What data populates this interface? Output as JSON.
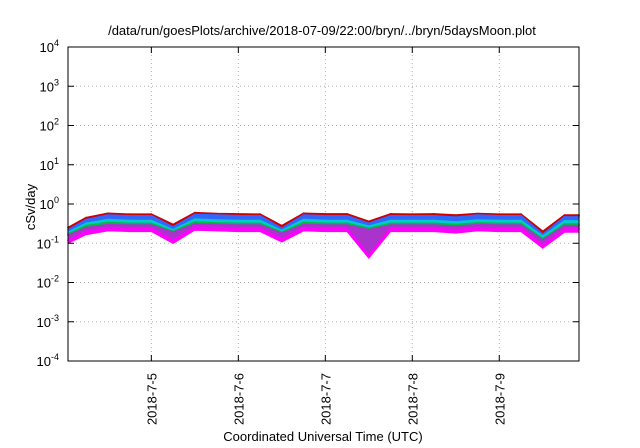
{
  "chart_data": {
    "type": "area",
    "title": "/data/run/goesPlots/archive/2018-07-09/22:00/bryn/../bryn/5daysMoon.plot",
    "xlabel": "Coordinated Universal Time (UTC)",
    "ylabel": "cSv/day",
    "yscale": "log",
    "ylim": [
      0.0001,
      10000
    ],
    "y_ticks": [
      {
        "base": "10",
        "exp": "-4",
        "value": 0.0001
      },
      {
        "base": "10",
        "exp": "-3",
        "value": 0.001
      },
      {
        "base": "10",
        "exp": "-2",
        "value": 0.01
      },
      {
        "base": "10",
        "exp": "-1",
        "value": 0.1
      },
      {
        "base": "10",
        "exp": "0",
        "value": 1
      },
      {
        "base": "10",
        "exp": "1",
        "value": 10
      },
      {
        "base": "10",
        "exp": "2",
        "value": 100
      },
      {
        "base": "10",
        "exp": "3",
        "value": 1000
      },
      {
        "base": "10",
        "exp": "4",
        "value": 10000
      }
    ],
    "xlim": [
      "2018-07-04 01:00",
      "2018-07-09 22:00"
    ],
    "x_ticks": [
      {
        "label": "2018-7-5",
        "value": "2018-07-05"
      },
      {
        "label": "2018-7-6",
        "value": "2018-07-06"
      },
      {
        "label": "2018-7-7",
        "value": "2018-07-07"
      },
      {
        "label": "2018-7-8",
        "value": "2018-07-08"
      },
      {
        "label": "2018-7-9",
        "value": "2018-07-09"
      }
    ],
    "grid": true,
    "x": [
      "2018-07-04 01:00",
      "2018-07-04 06:00",
      "2018-07-04 12:00",
      "2018-07-04 18:00",
      "2018-07-05 00:00",
      "2018-07-05 06:00",
      "2018-07-05 12:00",
      "2018-07-05 18:00",
      "2018-07-06 00:00",
      "2018-07-06 06:00",
      "2018-07-06 12:00",
      "2018-07-06 18:00",
      "2018-07-07 00:00",
      "2018-07-07 06:00",
      "2018-07-07 12:00",
      "2018-07-07 18:00",
      "2018-07-08 00:00",
      "2018-07-08 06:00",
      "2018-07-08 12:00",
      "2018-07-08 18:00",
      "2018-07-09 00:00",
      "2018-07-09 06:00",
      "2018-07-09 12:00",
      "2018-07-09 18:00",
      "2018-07-09 22:00"
    ],
    "series": [
      {
        "color": "#cc0000",
        "values": [
          0.25,
          0.45,
          0.58,
          0.55,
          0.55,
          0.3,
          0.6,
          0.57,
          0.56,
          0.55,
          0.28,
          0.58,
          0.56,
          0.56,
          0.36,
          0.56,
          0.55,
          0.56,
          0.52,
          0.57,
          0.55,
          0.55,
          0.2,
          0.52,
          0.52
        ]
      },
      {
        "color": "#3366ff",
        "values": [
          0.22,
          0.4,
          0.52,
          0.5,
          0.5,
          0.26,
          0.54,
          0.52,
          0.5,
          0.5,
          0.24,
          0.52,
          0.5,
          0.5,
          0.32,
          0.5,
          0.5,
          0.5,
          0.46,
          0.52,
          0.5,
          0.5,
          0.17,
          0.47,
          0.47
        ]
      },
      {
        "color": "#00cccc",
        "values": [
          0.19,
          0.32,
          0.4,
          0.38,
          0.38,
          0.22,
          0.41,
          0.39,
          0.38,
          0.38,
          0.21,
          0.4,
          0.38,
          0.38,
          0.27,
          0.38,
          0.38,
          0.38,
          0.35,
          0.39,
          0.38,
          0.38,
          0.15,
          0.37,
          0.37
        ]
      },
      {
        "color": "#00bb44",
        "values": [
          0.17,
          0.28,
          0.34,
          0.32,
          0.32,
          0.2,
          0.35,
          0.33,
          0.32,
          0.32,
          0.19,
          0.34,
          0.32,
          0.32,
          0.24,
          0.32,
          0.32,
          0.32,
          0.3,
          0.33,
          0.32,
          0.32,
          0.13,
          0.31,
          0.31
        ]
      },
      {
        "color": "#aa33cc",
        "values": [
          0.16,
          0.25,
          0.3,
          0.29,
          0.29,
          0.19,
          0.31,
          0.3,
          0.29,
          0.29,
          0.18,
          0.3,
          0.29,
          0.29,
          0.22,
          0.29,
          0.29,
          0.29,
          0.27,
          0.3,
          0.29,
          0.29,
          0.12,
          0.28,
          0.28
        ]
      },
      {
        "color": "#ff00ff",
        "values": [
          0.12,
          0.2,
          0.25,
          0.24,
          0.24,
          0.12,
          0.26,
          0.25,
          0.24,
          0.24,
          0.13,
          0.25,
          0.24,
          0.24,
          0.05,
          0.24,
          0.24,
          0.24,
          0.22,
          0.25,
          0.24,
          0.24,
          0.09,
          0.23,
          0.23
        ]
      }
    ]
  }
}
